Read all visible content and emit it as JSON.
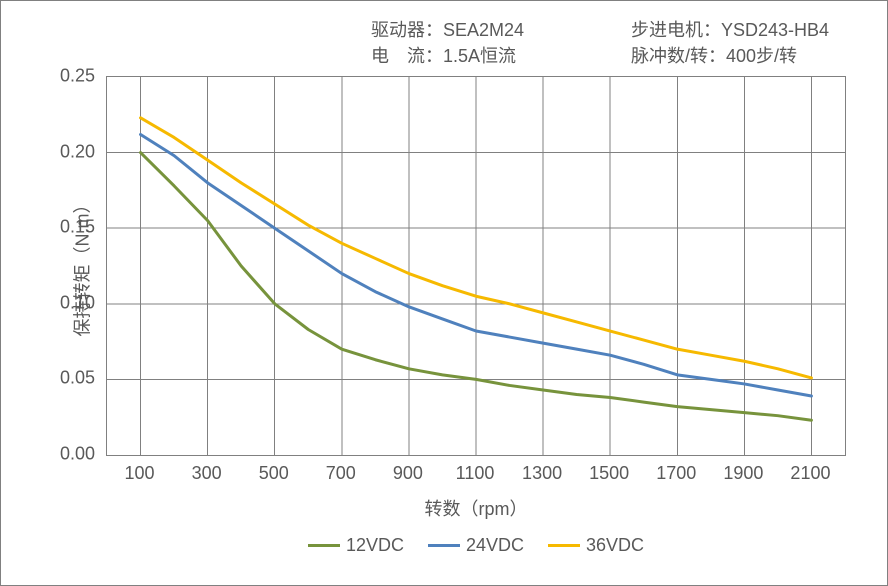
{
  "header": {
    "driver_label": "驱动器：",
    "driver_value": "SEA2M24",
    "motor_label": "步进电机：",
    "motor_value": "YSD243-HB4",
    "current_label": "电　流：",
    "current_value": "1.5A恒流",
    "pulse_label": "脉冲数/转：",
    "pulse_value": "400步/转"
  },
  "chart": {
    "type": "line",
    "ylabel": "保持转矩（N.m）",
    "xlabel": "转数（rpm）",
    "label_fontsize": 18,
    "tick_fontsize": 18,
    "text_color": "#595959",
    "background_color": "#ffffff",
    "border_color": "#808080",
    "grid_color": "#808080",
    "grid_width": 1,
    "line_width": 3,
    "xlim": [
      0,
      2200
    ],
    "ylim": [
      0.0,
      0.25
    ],
    "xticks": [
      100,
      300,
      500,
      700,
      900,
      1100,
      1300,
      1500,
      1700,
      1900,
      2100
    ],
    "xtick_labels": [
      "100",
      "300",
      "500",
      "700",
      "900",
      "1100",
      "1300",
      "1500",
      "1700",
      "1900",
      "2100"
    ],
    "yticks": [
      0.0,
      0.05,
      0.1,
      0.15,
      0.2,
      0.25
    ],
    "ytick_labels": [
      "0.00",
      "0.05",
      "0.10",
      "0.15",
      "0.20",
      "0.25"
    ],
    "series": [
      {
        "name": "12VDC",
        "color": "#77933c",
        "x": [
          100,
          200,
          300,
          400,
          500,
          600,
          700,
          800,
          900,
          1000,
          1100,
          1200,
          1300,
          1400,
          1500,
          1600,
          1700,
          1800,
          1900,
          2000,
          2100
        ],
        "y": [
          0.2,
          0.178,
          0.155,
          0.125,
          0.1,
          0.083,
          0.07,
          0.063,
          0.057,
          0.053,
          0.05,
          0.046,
          0.043,
          0.04,
          0.038,
          0.035,
          0.032,
          0.03,
          0.028,
          0.026,
          0.023
        ]
      },
      {
        "name": "24VDC",
        "color": "#4f81bd",
        "x": [
          100,
          200,
          300,
          400,
          500,
          600,
          700,
          800,
          900,
          1000,
          1100,
          1200,
          1300,
          1400,
          1500,
          1600,
          1700,
          1800,
          1900,
          2000,
          2100
        ],
        "y": [
          0.212,
          0.198,
          0.18,
          0.165,
          0.15,
          0.135,
          0.12,
          0.108,
          0.098,
          0.09,
          0.082,
          0.078,
          0.074,
          0.07,
          0.066,
          0.06,
          0.053,
          0.05,
          0.047,
          0.043,
          0.039
        ]
      },
      {
        "name": "36VDC",
        "color": "#f6b900",
        "x": [
          100,
          200,
          300,
          400,
          500,
          600,
          700,
          800,
          900,
          1000,
          1100,
          1200,
          1300,
          1400,
          1500,
          1600,
          1700,
          1800,
          1900,
          2000,
          2100
        ],
        "y": [
          0.223,
          0.21,
          0.195,
          0.18,
          0.166,
          0.152,
          0.14,
          0.13,
          0.12,
          0.112,
          0.105,
          0.1,
          0.094,
          0.088,
          0.082,
          0.076,
          0.07,
          0.066,
          0.062,
          0.057,
          0.051
        ]
      }
    ],
    "legend": [
      "12VDC",
      "24VDC",
      "36VDC"
    ]
  }
}
